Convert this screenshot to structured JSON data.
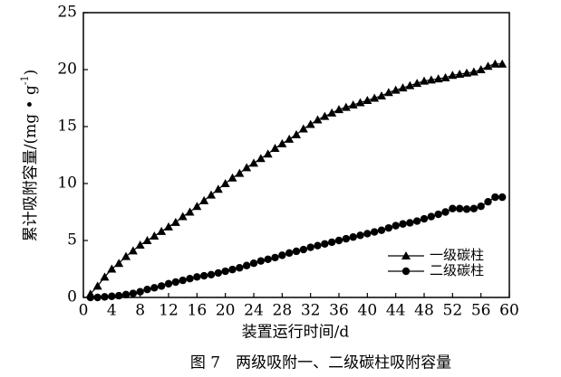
{
  "chart_data": {
    "type": "line",
    "caption": "图 7　两级吸附一、二级碳柱吸附容量",
    "x_label": "装置运行时间/d",
    "y_label": [
      "累计吸附容量/(mg • g",
      "-1",
      ")"
    ],
    "x": [
      1,
      2,
      3,
      4,
      5,
      6,
      7,
      8,
      9,
      10,
      11,
      12,
      13,
      14,
      15,
      16,
      17,
      18,
      19,
      20,
      21,
      22,
      23,
      24,
      25,
      26,
      27,
      28,
      29,
      30,
      31,
      32,
      33,
      34,
      35,
      36,
      37,
      38,
      39,
      40,
      41,
      42,
      43,
      44,
      45,
      46,
      47,
      48,
      49,
      50,
      51,
      52,
      53,
      54,
      55,
      56,
      57,
      58,
      59
    ],
    "series": [
      {
        "name": "一级碳柱",
        "color": "#000000",
        "marker": "triangle",
        "values": [
          0.3,
          1.0,
          1.8,
          2.5,
          3.0,
          3.6,
          4.1,
          4.6,
          5.0,
          5.4,
          5.8,
          6.2,
          6.6,
          7.1,
          7.5,
          8.0,
          8.5,
          9.0,
          9.5,
          10.0,
          10.5,
          10.9,
          11.4,
          11.8,
          12.2,
          12.6,
          13.1,
          13.5,
          13.9,
          14.3,
          14.8,
          15.2,
          15.6,
          15.9,
          16.2,
          16.5,
          16.7,
          16.9,
          17.1,
          17.3,
          17.5,
          17.7,
          18.0,
          18.2,
          18.4,
          18.6,
          18.8,
          19.0,
          19.1,
          19.2,
          19.3,
          19.5,
          19.6,
          19.7,
          19.8,
          20.0,
          20.3,
          20.5,
          20.5
        ]
      },
      {
        "name": "二级碳柱",
        "color": "#000000",
        "marker": "circle",
        "values": [
          0.0,
          0.0,
          0.05,
          0.1,
          0.15,
          0.25,
          0.35,
          0.5,
          0.7,
          0.85,
          1.0,
          1.2,
          1.35,
          1.5,
          1.65,
          1.8,
          1.9,
          2.0,
          2.15,
          2.3,
          2.45,
          2.6,
          2.8,
          3.0,
          3.2,
          3.35,
          3.5,
          3.7,
          3.9,
          4.05,
          4.2,
          4.4,
          4.55,
          4.7,
          4.85,
          5.0,
          5.15,
          5.3,
          5.45,
          5.6,
          5.75,
          5.9,
          6.1,
          6.3,
          6.45,
          6.55,
          6.7,
          6.9,
          7.1,
          7.3,
          7.5,
          7.8,
          7.8,
          7.75,
          7.8,
          8.0,
          8.4,
          8.8,
          8.8
        ]
      }
    ],
    "xlim": [
      0,
      60
    ],
    "xticks": [
      0,
      4,
      8,
      12,
      16,
      20,
      24,
      28,
      32,
      36,
      40,
      44,
      48,
      52,
      56,
      60
    ],
    "ylim": [
      0,
      25
    ],
    "yticks": [
      0,
      5,
      10,
      15,
      20,
      25
    ],
    "grid": false,
    "legend": "lower right"
  }
}
